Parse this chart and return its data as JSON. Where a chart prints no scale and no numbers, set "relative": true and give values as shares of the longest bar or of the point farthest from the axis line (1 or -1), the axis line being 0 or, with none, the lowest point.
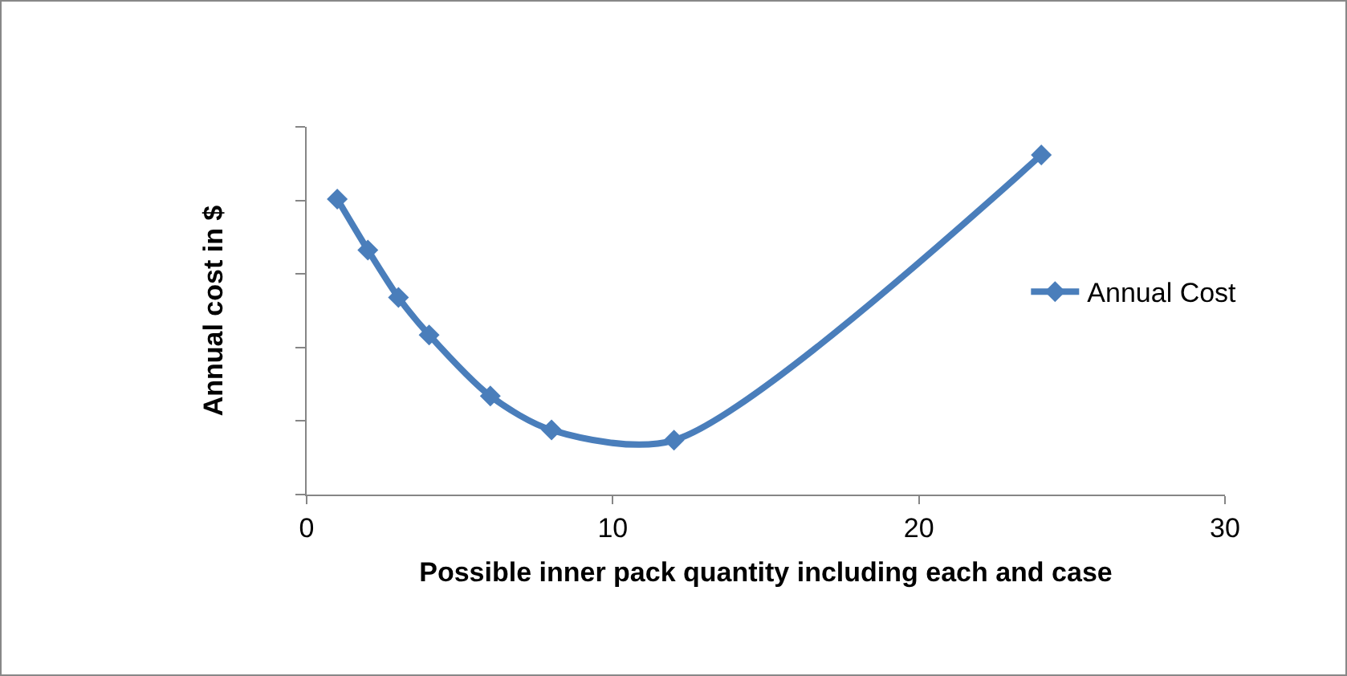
{
  "chart_data": {
    "type": "line",
    "relative": true,
    "xlabel": "Possible inner pack quantity including each and case",
    "ylabel": "Annual cost in $",
    "x": [
      1,
      2,
      3,
      4,
      6,
      8,
      12,
      24
    ],
    "xlim": [
      0,
      30
    ],
    "xticks": [
      0,
      10,
      20,
      30
    ],
    "series": [
      {
        "name": "Annual Cost",
        "color": "#4a7ebb",
        "values": [
          0.87,
          0.72,
          0.58,
          0.47,
          0.29,
          0.19,
          0.16,
          1
        ]
      }
    ],
    "marker": "diamond",
    "legend": "right",
    "grid": false,
    "tick_labels": "x"
  }
}
